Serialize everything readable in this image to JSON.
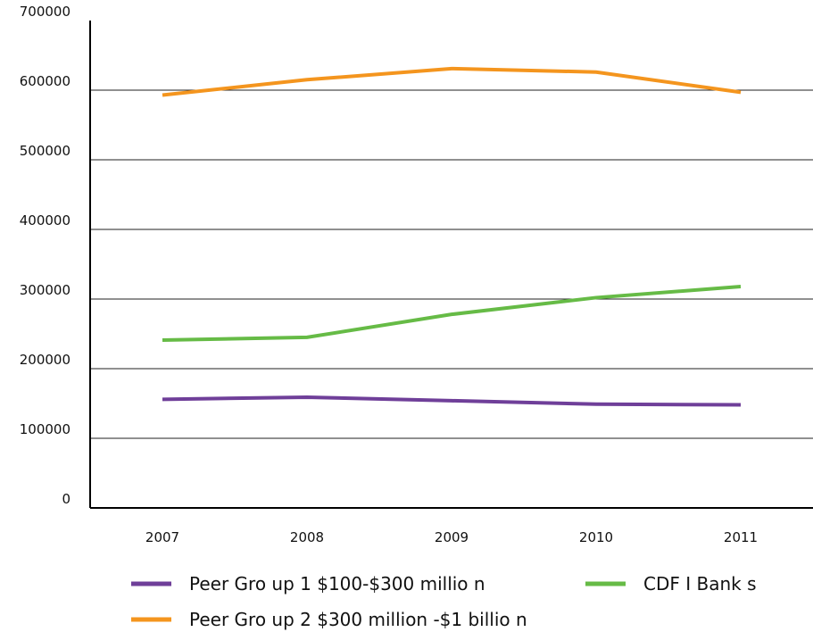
{
  "chart_data": {
    "type": "line",
    "categories": [
      "2007",
      "2008",
      "2009",
      "2010",
      "2011"
    ],
    "series": [
      {
        "name": "Peer Gro up 1 $100-$300 millio n",
        "color": "#6f3f99",
        "values": [
          156000,
          159000,
          154000,
          149000,
          148000
        ]
      },
      {
        "name": "CDF I Bank s",
        "color": "#66bb46",
        "values": [
          241000,
          245000,
          278000,
          302000,
          318000
        ]
      },
      {
        "name": "Peer Gro up 2 $300 million -$1 billio n",
        "color": "#f4951e",
        "values": [
          593000,
          615000,
          631000,
          626000,
          597000
        ]
      }
    ],
    "ylim": [
      0,
      700000
    ],
    "yticks": [
      0,
      100000,
      200000,
      300000,
      400000,
      500000,
      600000,
      700000
    ],
    "grid": true
  }
}
